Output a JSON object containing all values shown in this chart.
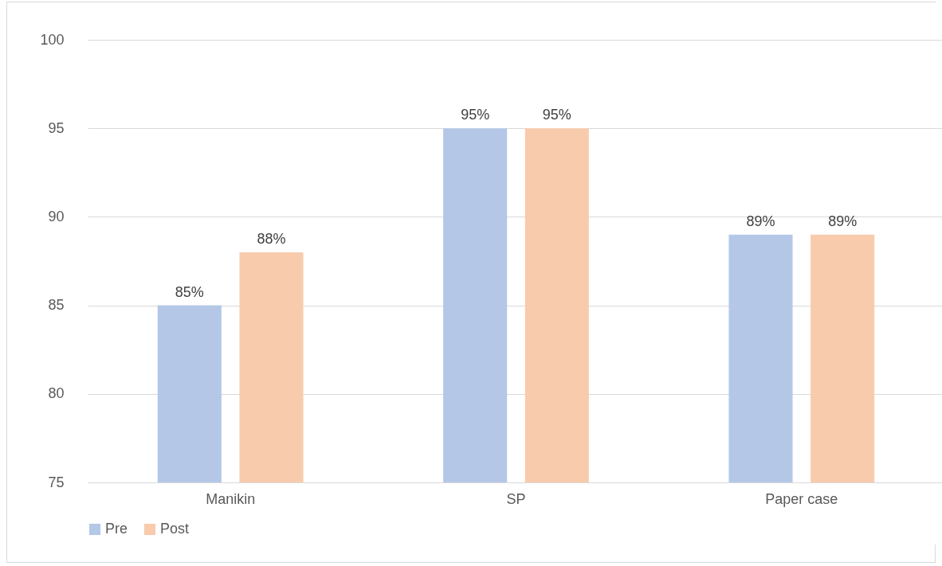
{
  "chart_data": {
    "type": "bar",
    "categories": [
      "Manikin",
      "SP",
      "Paper case"
    ],
    "series": [
      {
        "name": "Pre",
        "color": "#b4c7e7",
        "values": [
          85,
          95,
          89
        ],
        "value_labels": [
          "85%",
          "95%",
          "89%"
        ]
      },
      {
        "name": "Post",
        "color": "#f8cbad",
        "values": [
          88,
          95,
          89
        ],
        "value_labels": [
          "88%",
          "95%",
          "89%"
        ]
      }
    ],
    "ylim": [
      75,
      100
    ],
    "yticks": [
      75,
      80,
      85,
      90,
      95,
      100
    ],
    "grid": "y",
    "legend": "bottom"
  }
}
